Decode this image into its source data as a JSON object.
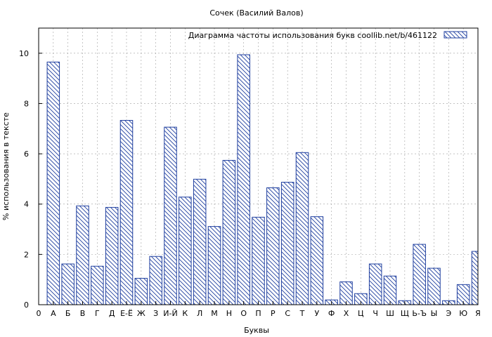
{
  "chart_data": {
    "type": "bar",
    "title": "Сочек (Василий Валов)",
    "xlabel": "Буквы",
    "ylabel": "% использования в тексте",
    "legend": {
      "label": "Диаграмма частоты использования букв  coollib.net/b/461122",
      "placement": "top-right"
    },
    "grid": true,
    "ylim": [
      0,
      11
    ],
    "yticks": [
      0,
      2,
      4,
      6,
      8,
      10
    ],
    "x_tick_labels": [
      "0",
      "А",
      "Б",
      "В",
      "Г",
      "Д",
      "Е-Ё",
      "Ж",
      "З",
      "И-Й",
      "К",
      "Л",
      "М",
      "Н",
      "О",
      "П",
      "Р",
      "С",
      "Т",
      "У",
      "Ф",
      "Х",
      "Ц",
      "Ч",
      "Ш",
      "Щ",
      "Ь-Ъ",
      "Ы",
      "Э",
      "Ю",
      "Я"
    ],
    "categories": [
      "А",
      "Б",
      "В",
      "Г",
      "Д",
      "Е-Ё",
      "Ж",
      "З",
      "И-Й",
      "К",
      "Л",
      "М",
      "Н",
      "О",
      "П",
      "Р",
      "С",
      "Т",
      "У",
      "Ф",
      "Х",
      "Ц",
      "Ч",
      "Ш",
      "Щ",
      "Ь-Ъ",
      "Ы",
      "Э",
      "Ю",
      "Я"
    ],
    "values": [
      9.65,
      1.62,
      3.93,
      1.53,
      3.87,
      7.33,
      1.05,
      1.92,
      7.06,
      4.28,
      4.99,
      3.11,
      5.74,
      9.94,
      3.48,
      4.65,
      4.87,
      6.05,
      3.5,
      0.19,
      0.91,
      0.44,
      1.62,
      1.14,
      0.16,
      2.4,
      1.45,
      0.16,
      0.8,
      2.12
    ],
    "colors": {
      "bar_stroke": "#1f3f9f",
      "hatch": "#1f3f9f",
      "grid": "#a0a0a0"
    }
  }
}
